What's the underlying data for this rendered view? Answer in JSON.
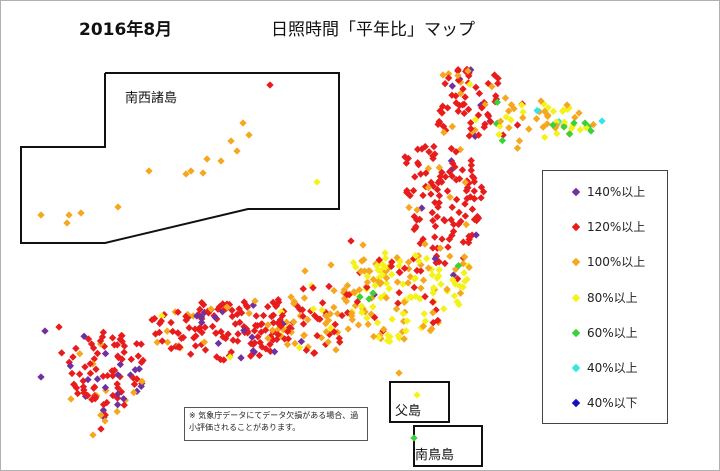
{
  "header": {
    "date": "2016年8月",
    "title": "日照時間「平年比」マップ"
  },
  "regions": {
    "nansei": "南西諸島",
    "chichijima": "父島",
    "minamitorishima": "南鳥島"
  },
  "legend": {
    "items": [
      {
        "label": "140%以上",
        "color": "#7030a0"
      },
      {
        "label": "120%以上",
        "color": "#e81c1c"
      },
      {
        "label": "100%以上",
        "color": "#f5a71f"
      },
      {
        "label": "80%以上",
        "color": "#f5f21a"
      },
      {
        "label": "60%以上",
        "color": "#3ad13a"
      },
      {
        "label": "40%以上",
        "color": "#2ee6e6"
      },
      {
        "label": "40%以下",
        "color": "#1010c8"
      }
    ]
  },
  "note": "※ 気象庁データにてデータ欠損がある場合、過小評価されることがあります。",
  "colors": {
    "border": "#111111"
  }
}
